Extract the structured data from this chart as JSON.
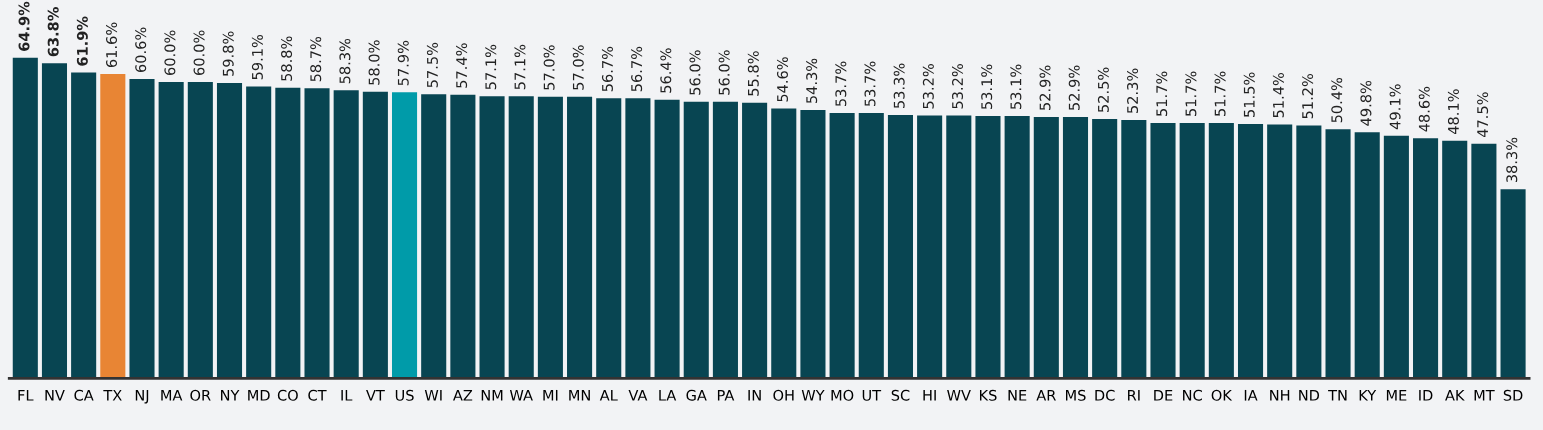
{
  "chart_data": {
    "type": "bar",
    "categories": [
      "FL",
      "NV",
      "CA",
      "TX",
      "NJ",
      "MA",
      "OR",
      "NY",
      "MD",
      "CO",
      "CT",
      "IL",
      "VT",
      "US",
      "WI",
      "AZ",
      "NM",
      "WA",
      "MI",
      "MN",
      "AL",
      "VA",
      "LA",
      "GA",
      "PA",
      "IN",
      "OH",
      "WY",
      "MO",
      "UT",
      "SC",
      "HI",
      "WV",
      "KS",
      "NE",
      "AR",
      "MS",
      "DC",
      "RI",
      "DE",
      "NC",
      "OK",
      "IA",
      "NH",
      "ND",
      "TN",
      "KY",
      "ME",
      "ID",
      "AK",
      "MT",
      "SD"
    ],
    "values": [
      64.9,
      63.8,
      61.9,
      61.6,
      60.6,
      60.0,
      60.0,
      59.8,
      59.1,
      58.8,
      58.7,
      58.3,
      58.0,
      57.9,
      57.5,
      57.4,
      57.1,
      57.1,
      57.0,
      57.0,
      56.7,
      56.7,
      56.4,
      56.0,
      56.0,
      55.8,
      54.6,
      54.3,
      53.7,
      53.7,
      53.3,
      53.2,
      53.2,
      53.1,
      53.1,
      52.9,
      52.9,
      52.5,
      52.3,
      51.7,
      51.7,
      51.7,
      51.5,
      51.4,
      51.2,
      50.4,
      49.8,
      49.1,
      48.6,
      48.1,
      47.5,
      38.3
    ],
    "value_labels": [
      "64.9%",
      "63.8%",
      "61.9%",
      "61.6%",
      "60.6%",
      "60.0%",
      "60.0%",
      "59.8%",
      "59.1%",
      "58.8%",
      "58.7%",
      "58.3%",
      "58.0%",
      "57.9%",
      "57.5%",
      "57.4%",
      "57.1%",
      "57.1%",
      "57.0%",
      "57.0%",
      "56.7%",
      "56.7%",
      "56.4%",
      "56.0%",
      "56.0%",
      "55.8%",
      "54.6%",
      "54.3%",
      "53.7%",
      "53.7%",
      "53.3%",
      "53.2%",
      "53.2%",
      "53.1%",
      "53.1%",
      "52.9%",
      "52.9%",
      "52.5%",
      "52.3%",
      "51.7%",
      "51.7%",
      "51.7%",
      "51.5%",
      "51.4%",
      "51.2%",
      "50.4%",
      "49.8%",
      "49.1%",
      "48.6%",
      "48.1%",
      "47.5%",
      "38.3%"
    ],
    "colors": [
      "#084552",
      "#084552",
      "#084552",
      "#e88534",
      "#084552",
      "#084552",
      "#084552",
      "#084552",
      "#084552",
      "#084552",
      "#084552",
      "#084552",
      "#084552",
      "#009ba9",
      "#084552",
      "#084552",
      "#084552",
      "#084552",
      "#084552",
      "#084552",
      "#084552",
      "#084552",
      "#084552",
      "#084552",
      "#084552",
      "#084552",
      "#084552",
      "#084552",
      "#084552",
      "#084552",
      "#084552",
      "#084552",
      "#084552",
      "#084552",
      "#084552",
      "#084552",
      "#084552",
      "#084552",
      "#084552",
      "#084552",
      "#084552",
      "#084552",
      "#084552",
      "#084552",
      "#084552",
      "#084552",
      "#084552",
      "#084552",
      "#084552",
      "#084552",
      "#084552",
      "#084552"
    ],
    "tick_labels": "x",
    "grid": false,
    "legend": false
  }
}
